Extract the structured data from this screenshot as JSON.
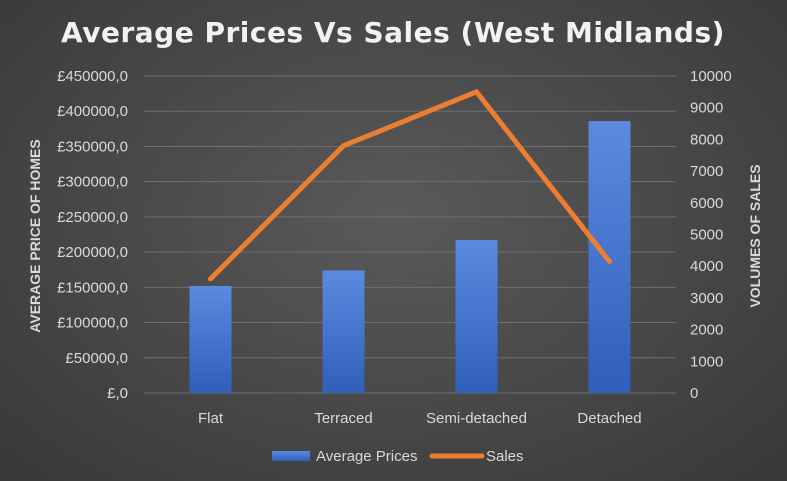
{
  "chart_data": {
    "type": "bar",
    "title": "Average Prices Vs Sales (West Midlands)",
    "categories": [
      "Flat",
      "Terraced",
      "Semi-detached",
      "Detached"
    ],
    "series": [
      {
        "name": "Average Prices",
        "type": "bar",
        "axis": "left",
        "values": [
          152000,
          174000,
          217000,
          386000
        ],
        "color": "#4472c4"
      },
      {
        "name": "Sales",
        "type": "line",
        "axis": "right",
        "values": [
          3600,
          7800,
          9500,
          4150
        ],
        "color": "#ed7d31"
      }
    ],
    "ylabel": "AVERAGE PRICE OF HOMES",
    "y2label": "VOLUMES OF SALES",
    "ylim": [
      0,
      450000
    ],
    "y2lim": [
      0,
      10000
    ],
    "yticks": [
      "£,0",
      "£50000,0",
      "£100000,0",
      "£150000,0",
      "£200000,0",
      "£250000,0",
      "£300000,0",
      "£350000,0",
      "£400000,0",
      "£450000,0"
    ],
    "y2ticks": [
      "0",
      "1000",
      "2000",
      "3000",
      "4000",
      "5000",
      "6000",
      "7000",
      "8000",
      "9000",
      "10000"
    ],
    "grid": true,
    "legend": "bottom"
  }
}
